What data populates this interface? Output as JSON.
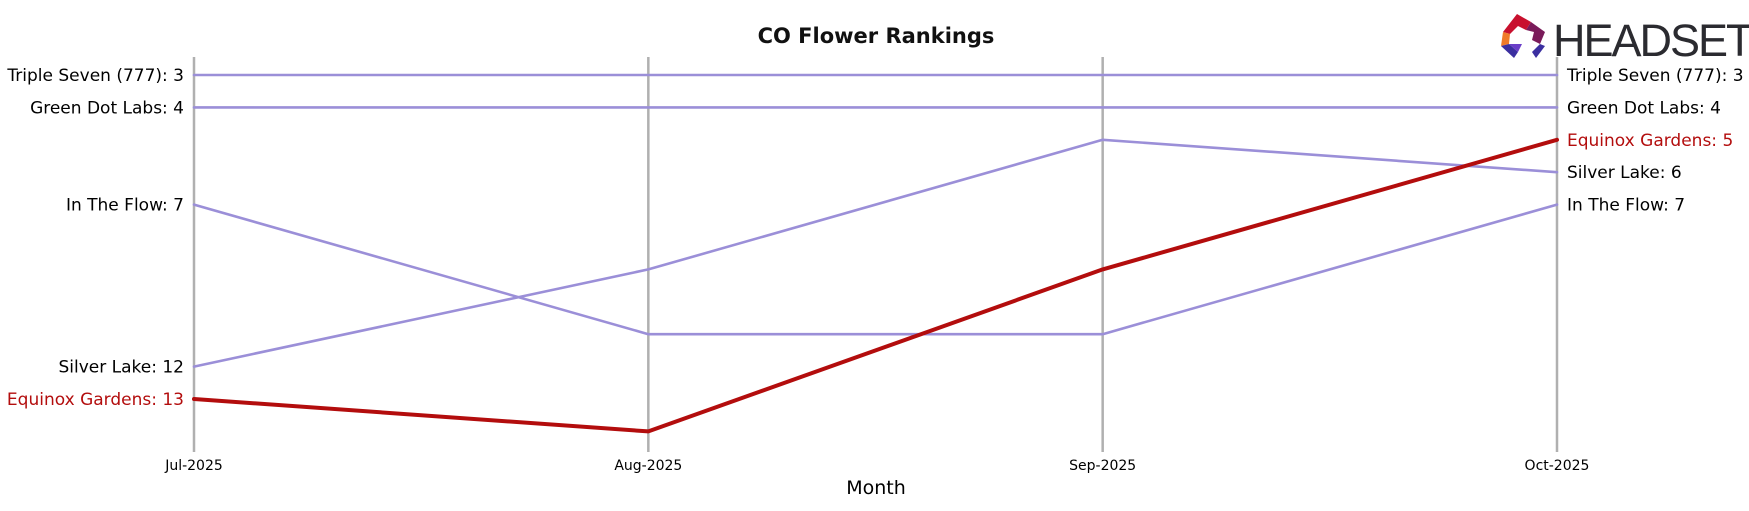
{
  "chart_data": {
    "type": "line",
    "title": "CO Flower Rankings",
    "xlabel": "Month",
    "ylabel": "",
    "categories": [
      "Jul-2025",
      "Aug-2025",
      "Sep-2025",
      "Oct-2025"
    ],
    "y_scale": "rank (1 at top, inverted)",
    "ylim": [
      15,
      2
    ],
    "grid": "vertical lines at each month",
    "legend": "none; series labels printed at left and right ends",
    "series": [
      {
        "name": "Triple Seven (777)",
        "values": [
          3,
          3,
          3,
          3
        ],
        "color": "#9b8fd8",
        "highlight": false
      },
      {
        "name": "Green Dot Labs",
        "values": [
          4,
          4,
          4,
          4
        ],
        "color": "#9b8fd8",
        "highlight": false
      },
      {
        "name": "In The Flow",
        "values": [
          7,
          11,
          11,
          7
        ],
        "color": "#9b8fd8",
        "highlight": false
      },
      {
        "name": "Silver Lake",
        "values": [
          12,
          9,
          5,
          6
        ],
        "color": "#9b8fd8",
        "highlight": false
      },
      {
        "name": "Equinox Gardens",
        "values": [
          13,
          14,
          9,
          5
        ],
        "color": "#b30d0d",
        "highlight": true
      }
    ],
    "left_labels": [
      "Triple Seven (777): 3",
      "Green Dot Labs: 4",
      "In The Flow: 7",
      "Silver Lake: 12",
      "Equinox Gardens: 13"
    ],
    "right_labels": [
      "Triple Seven (777): 3",
      "Green Dot Labs: 4",
      "Equinox Gardens: 5",
      "Silver Lake: 6",
      "In The Flow: 7"
    ]
  },
  "brand": {
    "name": "HEADSET",
    "logo_icon": "headset-hexagon-logo"
  },
  "colors": {
    "highlight": "#b30d0d",
    "series": "#9b8fd8",
    "grid": "#b0b0b0",
    "text": "#000000"
  }
}
